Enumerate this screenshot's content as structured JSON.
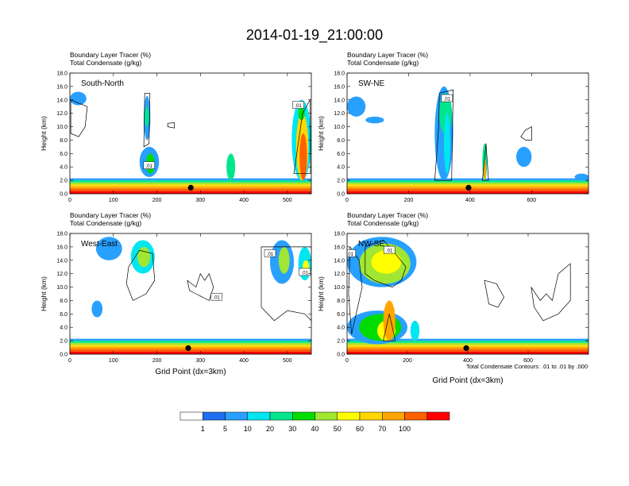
{
  "title": "2014-01-19_21:00:00",
  "colors": {
    "levels": [
      "#ffffff",
      "#1e6ff0",
      "#28a0ff",
      "#00e6f0",
      "#00e68c",
      "#00dc00",
      "#a0e632",
      "#ffff00",
      "#ffd700",
      "#ffa500",
      "#ff6000",
      "#ff0000"
    ],
    "contour": "#000000"
  },
  "colorbar": {
    "labels": [
      "1",
      "5",
      "10",
      "20",
      "30",
      "40",
      "50",
      "60",
      "70",
      "100"
    ]
  },
  "footnote": "Total Condensate Contours: .01 to .01 by .000",
  "chart_data": [
    {
      "type": "heatmap",
      "label": "South-North",
      "subtitle_line1": "Boundary Layer Tracer   (%)",
      "subtitle_line2": "Total Condensate   (g/kg)",
      "xlabel": "",
      "ylabel": "Height (km)",
      "xlim": [
        0,
        555
      ],
      "ylim": [
        0,
        18
      ],
      "xticks": [
        0,
        100,
        200,
        300,
        400,
        500
      ],
      "yticks": [
        "0.0",
        "2.0",
        "4.0",
        "6.0",
        "8.0",
        "10.0",
        "12.0",
        "14.0",
        "16.0",
        "18.0"
      ],
      "marker": [
        278,
        0.9
      ],
      "contour_labels": [
        ".01",
        ".01"
      ]
    },
    {
      "type": "heatmap",
      "label": "SW-NE",
      "subtitle_line1": "Boundary Layer Tracer   (%)",
      "subtitle_line2": "Total Condensate   (g/kg)",
      "xlabel": "",
      "ylabel": "Height (km)",
      "xlim": [
        0,
        785
      ],
      "ylim": [
        0,
        18
      ],
      "xticks": [
        0,
        200,
        400,
        600
      ],
      "yticks": [
        "0.0",
        "2.0",
        "4.0",
        "6.0",
        "8.0",
        "10.0",
        "12.0",
        "14.0",
        "16.0",
        "18.0"
      ],
      "marker": [
        395,
        0.9
      ],
      "contour_labels": [
        ".01"
      ]
    },
    {
      "type": "heatmap",
      "label": "West-East",
      "subtitle_line1": "Boundary Layer Tracer   (%)",
      "subtitle_line2": "Total Condensate   (g/kg)",
      "xlabel": "Grid Point (dx=3km)",
      "ylabel": "Height (km)",
      "xlim": [
        0,
        555
      ],
      "ylim": [
        0,
        18
      ],
      "xticks": [
        0,
        100,
        200,
        300,
        400,
        500
      ],
      "yticks": [
        "0.0",
        "2.0",
        "4.0",
        "6.0",
        "8.0",
        "10.0",
        "12.0",
        "14.0",
        "16.0",
        "18.0"
      ],
      "marker": [
        272,
        0.9
      ],
      "contour_labels": [
        ".01",
        ".01",
        ".01"
      ]
    },
    {
      "type": "heatmap",
      "label": "NW-SE",
      "subtitle_line1": "Boundary Layer Tracer   (%)",
      "subtitle_line2": "Total Condensate   (g/kg)",
      "xlabel": "Grid Point (dx=3km)",
      "ylabel": "Height (km)",
      "xlim": [
        0,
        800
      ],
      "ylim": [
        0,
        18
      ],
      "xticks": [
        0,
        200,
        400,
        600
      ],
      "yticks": [
        "0.0",
        "2.0",
        "4.0",
        "6.0",
        "8.0",
        "10.0",
        "12.0",
        "14.0",
        "16.0",
        "18.0"
      ],
      "marker": [
        395,
        0.9
      ],
      "contour_labels": [
        ".01",
        ".01"
      ]
    }
  ]
}
